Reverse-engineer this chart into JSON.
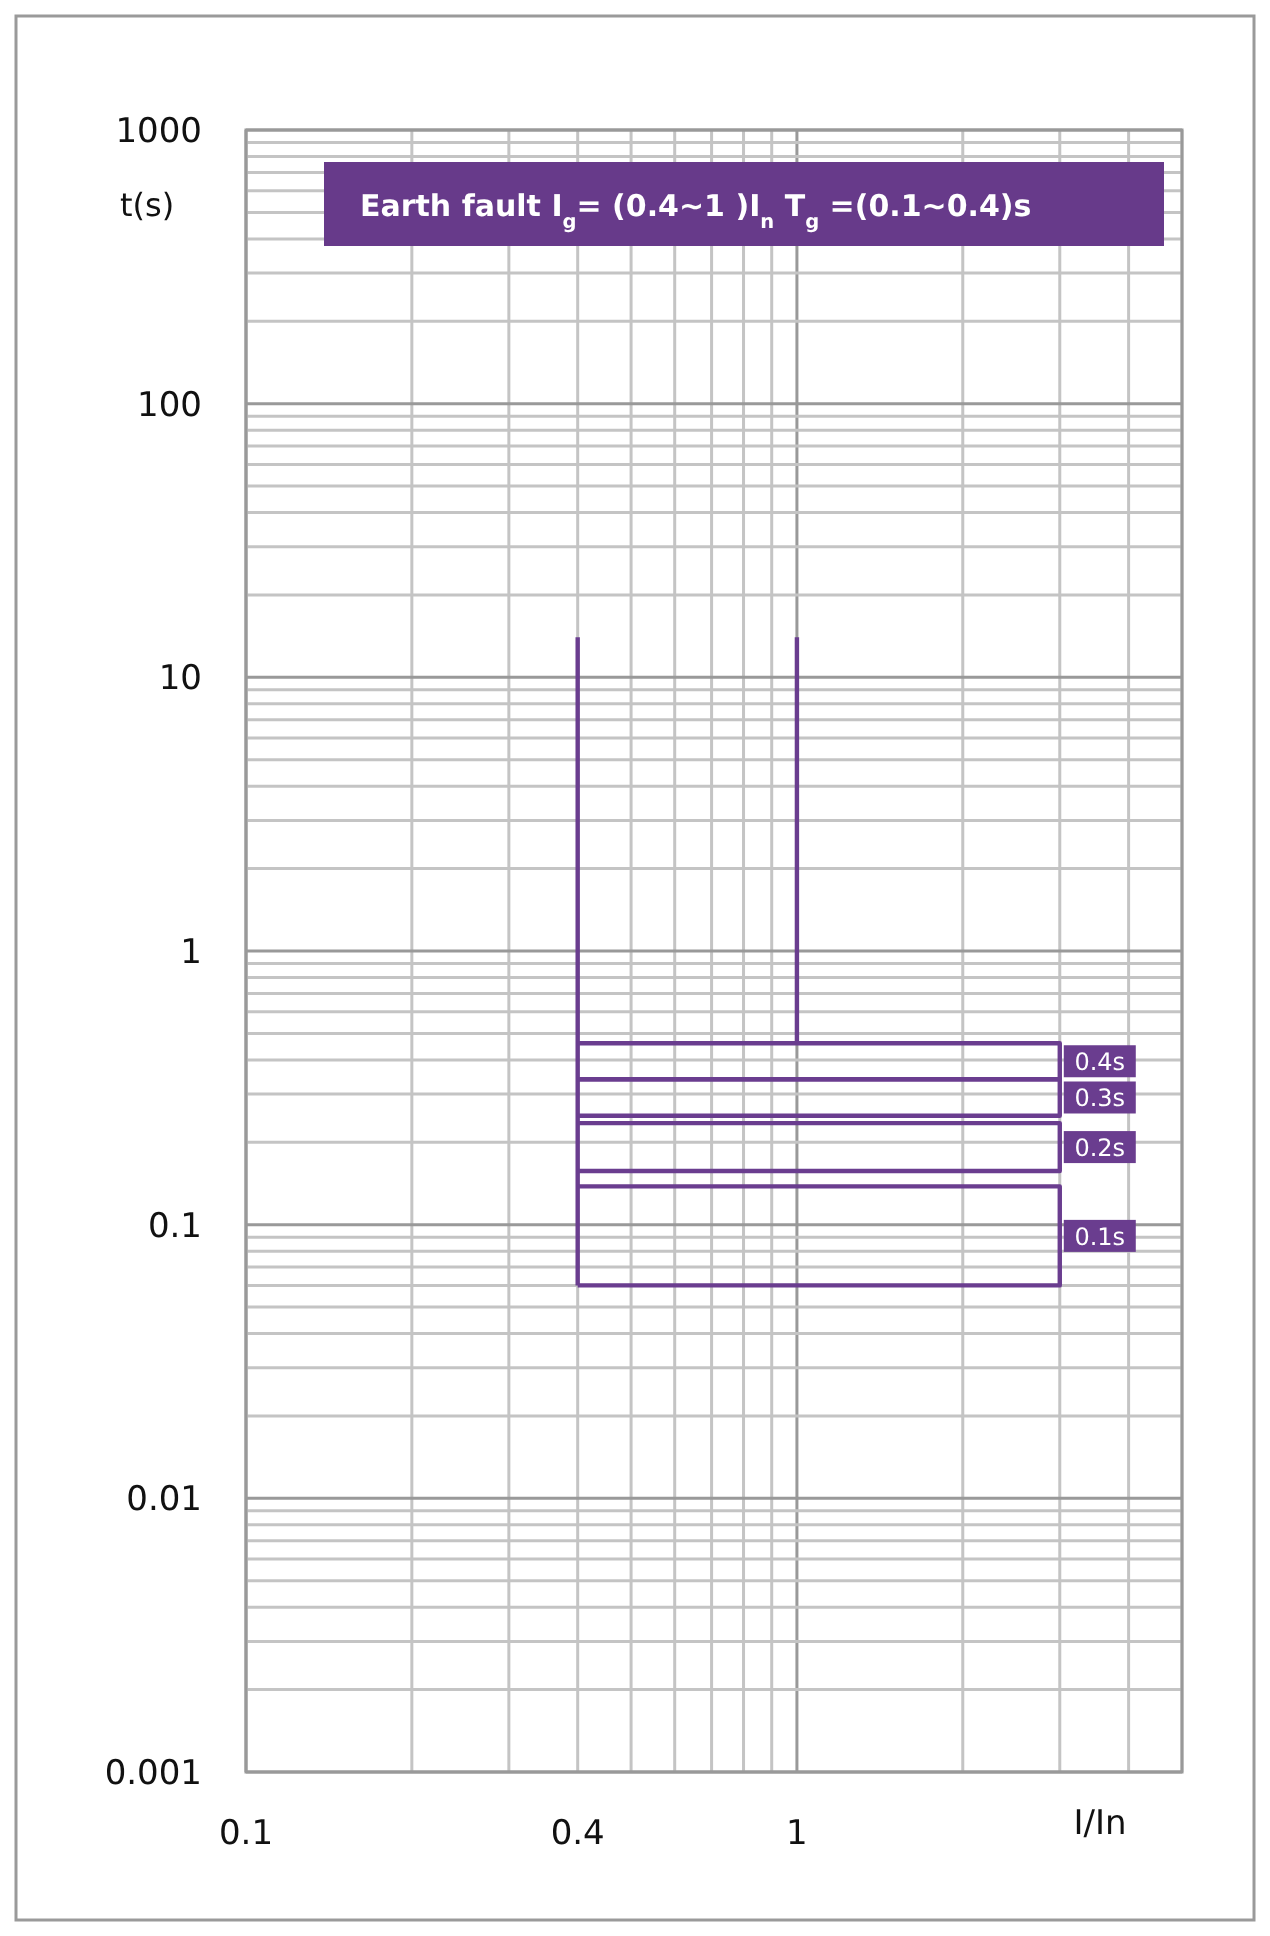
{
  "chart_data": {
    "type": "line",
    "title": "Earth fault I$_{g}$= (0.4~1 )I$_{n}$ T$_{g}$ =(0.1~0.4)s",
    "xlabel": "I/In",
    "ylabel": "t(s)",
    "log": "xy",
    "grid": true,
    "marker": "none",
    "line_style": "solid",
    "legend": "right",
    "xlim": [
      0.1,
      5
    ],
    "xticks": [
      0.1,
      {
        "value": 0.2,
        "label": null
      },
      {
        "value": 0.3,
        "label": null
      },
      0.4,
      {
        "value": 0.5,
        "label": null
      },
      {
        "value": 0.6,
        "label": null
      },
      {
        "value": 0.7,
        "label": null
      },
      {
        "value": 0.8,
        "label": null
      },
      {
        "value": 0.9,
        "label": null
      },
      1,
      {
        "value": 2,
        "label": null
      },
      {
        "value": 3,
        "label": null
      },
      {
        "value": 4,
        "label": null
      },
      {
        "value": 5,
        "label": null
      }
    ],
    "ylim": [
      0.001,
      1000
    ],
    "yticks": [
      0.001,
      {
        "value": 0.002,
        "label": null
      },
      {
        "value": 0.003,
        "label": null
      },
      {
        "value": 0.004,
        "label": null
      },
      {
        "value": 0.005,
        "label": null
      },
      {
        "value": 0.006,
        "label": null
      },
      {
        "value": 0.007,
        "label": null
      },
      {
        "value": 0.008,
        "label": null
      },
      {
        "value": 0.009,
        "label": null
      },
      0.01,
      {
        "value": 0.02,
        "label": null
      },
      {
        "value": 0.03,
        "label": null
      },
      {
        "value": 0.04,
        "label": null
      },
      {
        "value": 0.05,
        "label": null
      },
      {
        "value": 0.06,
        "label": null
      },
      {
        "value": 0.07,
        "label": null
      },
      {
        "value": 0.08,
        "label": null
      },
      {
        "value": 0.09,
        "label": null
      },
      0.1,
      {
        "value": 0.2,
        "label": null
      },
      {
        "value": 0.3,
        "label": null
      },
      {
        "value": 0.4,
        "label": null
      },
      {
        "value": 0.5,
        "label": null
      },
      {
        "value": 0.6,
        "label": null
      },
      {
        "value": 0.7,
        "label": null
      },
      {
        "value": 0.8,
        "label": null
      },
      {
        "value": 0.9,
        "label": null
      },
      1,
      {
        "value": 2,
        "label": null
      },
      {
        "value": 3,
        "label": null
      },
      {
        "value": 4,
        "label": null
      },
      {
        "value": 5,
        "label": null
      },
      {
        "value": 6,
        "label": null
      },
      {
        "value": 7,
        "label": null
      },
      {
        "value": 8,
        "label": null
      },
      {
        "value": 9,
        "label": null
      },
      10,
      {
        "value": 20,
        "label": null
      },
      {
        "value": 30,
        "label": null
      },
      {
        "value": 40,
        "label": null
      },
      {
        "value": 50,
        "label": null
      },
      {
        "value": 60,
        "label": null
      },
      {
        "value": 70,
        "label": null
      },
      {
        "value": 80,
        "label": null
      },
      {
        "value": 90,
        "label": null
      },
      100,
      {
        "value": 200,
        "label": null
      },
      {
        "value": 300,
        "label": null
      },
      {
        "value": 400,
        "label": null
      },
      {
        "value": 500,
        "label": null
      },
      {
        "value": 600,
        "label": null
      },
      {
        "value": 700,
        "label": null
      },
      {
        "value": 800,
        "label": null
      },
      {
        "value": 900,
        "label": null
      },
      1000
    ],
    "series": [
      {
        "color": "#6a3d8f",
        "x": [
          0.4,
          0.4
        ],
        "values": [
          14,
          0.06
        ]
      },
      {
        "color": "#6a3d8f",
        "x": [
          1,
          1
        ],
        "values": [
          14,
          0.46
        ]
      },
      {
        "name": "0.4s",
        "color": "#6a3d8f",
        "x": [
          0.4,
          3,
          3,
          0.4
        ],
        "values": [
          0.46,
          0.46,
          0.34,
          0.34
        ]
      },
      {
        "name": "0.3s",
        "color": "#6a3d8f",
        "x": [
          0.4,
          3,
          3,
          0.4
        ],
        "values": [
          0.34,
          0.34,
          0.25,
          0.25
        ]
      },
      {
        "name": "0.2s",
        "color": "#6a3d8f",
        "x": [
          0.4,
          3,
          3,
          0.4
        ],
        "values": [
          0.235,
          0.235,
          0.157,
          0.157
        ]
      },
      {
        "name": "0.1s",
        "color": "#6a3d8f",
        "x": [
          0.4,
          3,
          3,
          0.4
        ],
        "values": [
          0.138,
          0.138,
          0.06,
          0.06
        ]
      }
    ]
  }
}
